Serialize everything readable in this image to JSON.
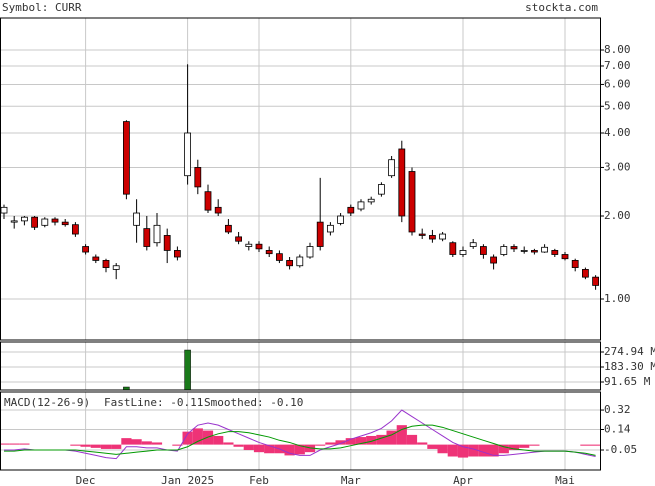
{
  "chart_data": [
    {
      "type": "candlestick",
      "title": "Symbol: CURR",
      "source": "stockta.com",
      "log": true,
      "grid": true,
      "up_color": "#ffffff",
      "down_color": "#cc0000",
      "categories": [
        null,
        null,
        null,
        null,
        null,
        null,
        null,
        null,
        "Dec",
        null,
        null,
        null,
        null,
        null,
        null,
        null,
        null,
        null,
        "Jan 2025",
        null,
        null,
        null,
        null,
        null,
        null,
        "Feb",
        null,
        null,
        null,
        null,
        null,
        null,
        null,
        null,
        "Mar",
        null,
        null,
        null,
        null,
        null,
        null,
        null,
        null,
        null,
        null,
        "Apr",
        null,
        null,
        null,
        null,
        null,
        null,
        null,
        null,
        null,
        "Mai",
        null,
        null,
        null
      ],
      "open": [
        2.05,
        1.9,
        1.92,
        1.98,
        1.85,
        1.95,
        1.9,
        1.86,
        1.55,
        1.42,
        1.38,
        1.28,
        4.4,
        1.85,
        1.8,
        1.6,
        1.7,
        1.5,
        2.8,
        3.0,
        2.45,
        2.15,
        1.85,
        1.68,
        1.55,
        1.58,
        1.5,
        1.46,
        1.38,
        1.32,
        1.42,
        1.9,
        1.75,
        1.88,
        2.15,
        2.12,
        2.25,
        2.4,
        2.8,
        3.5,
        2.9,
        1.72,
        1.7,
        1.65,
        1.6,
        1.45,
        1.55,
        1.55,
        1.42,
        1.45,
        1.55,
        1.5,
        1.5,
        1.48,
        1.5,
        1.45,
        1.38,
        1.28,
        1.2
      ],
      "high": [
        2.2,
        2.0,
        2.0,
        2.0,
        1.98,
        1.98,
        1.95,
        1.9,
        1.58,
        1.45,
        1.4,
        1.35,
        4.45,
        2.3,
        2.0,
        2.05,
        1.8,
        1.55,
        7.1,
        3.2,
        2.6,
        2.3,
        1.95,
        1.75,
        1.62,
        1.62,
        1.55,
        1.5,
        1.42,
        1.45,
        1.6,
        2.75,
        1.9,
        2.05,
        2.2,
        2.3,
        2.35,
        2.65,
        3.3,
        3.75,
        3.0,
        1.8,
        1.78,
        1.75,
        1.62,
        1.55,
        1.65,
        1.58,
        1.45,
        1.58,
        1.58,
        1.55,
        1.52,
        1.58,
        1.52,
        1.48,
        1.4,
        1.3,
        1.22
      ],
      "low": [
        1.95,
        1.8,
        1.85,
        1.78,
        1.82,
        1.85,
        1.83,
        1.68,
        1.45,
        1.35,
        1.25,
        1.18,
        2.3,
        1.6,
        1.5,
        1.55,
        1.35,
        1.38,
        2.6,
        2.4,
        2.05,
        2.0,
        1.72,
        1.58,
        1.5,
        1.48,
        1.42,
        1.35,
        1.28,
        1.3,
        1.4,
        1.5,
        1.7,
        1.85,
        2.0,
        2.08,
        2.2,
        2.35,
        2.75,
        1.9,
        1.7,
        1.65,
        1.6,
        1.62,
        1.42,
        1.42,
        1.52,
        1.4,
        1.28,
        1.43,
        1.48,
        1.46,
        1.45,
        1.47,
        1.42,
        1.38,
        1.26,
        1.18,
        1.08
      ],
      "close": [
        2.15,
        1.92,
        1.98,
        1.82,
        1.95,
        1.9,
        1.86,
        1.72,
        1.48,
        1.38,
        1.3,
        1.32,
        2.4,
        2.05,
        1.55,
        1.85,
        1.5,
        1.42,
        4.0,
        2.55,
        2.1,
        2.05,
        1.75,
        1.62,
        1.58,
        1.52,
        1.46,
        1.38,
        1.32,
        1.42,
        1.55,
        1.55,
        1.85,
        2.0,
        2.05,
        2.25,
        2.3,
        2.6,
        3.2,
        2.0,
        1.75,
        1.7,
        1.65,
        1.72,
        1.45,
        1.5,
        1.6,
        1.45,
        1.35,
        1.55,
        1.52,
        1.5,
        1.48,
        1.54,
        1.45,
        1.4,
        1.3,
        1.2,
        1.12
      ],
      "ylim": [
        0.71,
        10.45
      ],
      "yticks": [
        {
          "value": 1,
          "label": "1.00"
        },
        {
          "value": 2,
          "label": "2.00"
        },
        {
          "value": 3,
          "label": "3.00"
        },
        {
          "value": 4,
          "label": "4.00"
        },
        {
          "value": 5,
          "label": "5.00"
        },
        {
          "value": 6,
          "label": "6.00"
        },
        {
          "value": 7,
          "label": "7.00"
        },
        {
          "value": 8,
          "label": "8.00"
        }
      ]
    },
    {
      "type": "bar",
      "color": "#1a7a1a",
      "values": [
        null,
        null,
        null,
        null,
        null,
        null,
        null,
        null,
        null,
        null,
        null,
        null,
        61,
        null,
        null,
        null,
        null,
        null,
        287,
        null,
        null,
        null,
        null,
        null,
        null,
        null,
        null,
        null,
        null,
        null,
        null,
        null,
        null,
        null,
        null,
        null,
        null,
        null,
        null,
        null,
        null,
        null,
        null,
        null,
        null,
        null,
        null,
        null,
        null,
        null,
        null,
        null,
        null,
        null,
        null,
        null,
        null,
        null,
        null
      ],
      "ylim": [
        42.77,
        336.1
      ],
      "yticks": [
        {
          "value": 91.65,
          "label": "91.65 M"
        },
        {
          "value": 183.3,
          "label": "183.30 M"
        },
        {
          "value": 274.94,
          "label": "274.94 M"
        }
      ]
    },
    {
      "type": "line",
      "title": "MACD(12-26-9)",
      "series": [
        {
          "kind": "bar",
          "color": "#ee3377",
          "values": [
            0.01,
            0.01,
            0.01,
            0,
            0,
            0,
            0,
            -0.01,
            -0.02,
            -0.03,
            -0.04,
            -0.04,
            0.06,
            0.05,
            0.03,
            0.02,
            0,
            -0.01,
            0.12,
            0.15,
            0.13,
            0.08,
            0.02,
            -0.02,
            -0.05,
            -0.07,
            -0.08,
            -0.08,
            -0.1,
            -0.09,
            -0.07,
            -0.01,
            0.02,
            0.04,
            0.06,
            0.07,
            0.08,
            0.09,
            0.13,
            0.18,
            0.09,
            0.02,
            -0.04,
            -0.08,
            -0.11,
            -0.12,
            -0.11,
            -0.11,
            -0.11,
            -0.08,
            -0.05,
            -0.03,
            -0.01,
            0,
            0,
            0,
            0,
            -0.01,
            -0.01
          ]
        },
        {
          "name": "FastLine: -0.11",
          "color": "#9933cc",
          "values": [
            -0.05,
            -0.05,
            -0.04,
            -0.05,
            -0.05,
            -0.05,
            -0.05,
            -0.06,
            -0.08,
            -0.1,
            -0.12,
            -0.13,
            -0.02,
            -0.02,
            -0.03,
            -0.03,
            -0.05,
            -0.06,
            0.1,
            0.18,
            0.2,
            0.18,
            0.14,
            0.1,
            0.06,
            0.02,
            -0.01,
            -0.04,
            -0.08,
            -0.1,
            -0.1,
            -0.05,
            -0.02,
            0.01,
            0.05,
            0.08,
            0.11,
            0.15,
            0.22,
            0.32,
            0.26,
            0.2,
            0.14,
            0.08,
            0.02,
            -0.02,
            -0.04,
            -0.07,
            -0.1,
            -0.1,
            -0.09,
            -0.08,
            -0.07,
            -0.06,
            -0.06,
            -0.06,
            -0.07,
            -0.09,
            -0.11
          ]
        },
        {
          "name": "Smoothed: -0.10",
          "color": "#009900",
          "values": [
            -0.06,
            -0.06,
            -0.05,
            -0.05,
            -0.05,
            -0.05,
            -0.05,
            -0.05,
            -0.06,
            -0.07,
            -0.08,
            -0.09,
            -0.08,
            -0.07,
            -0.06,
            -0.05,
            -0.05,
            -0.05,
            -0.02,
            0.03,
            0.07,
            0.1,
            0.12,
            0.12,
            0.11,
            0.09,
            0.07,
            0.04,
            0.02,
            -0.01,
            -0.03,
            -0.04,
            -0.04,
            -0.03,
            -0.01,
            0.01,
            0.03,
            0.06,
            0.09,
            0.14,
            0.17,
            0.18,
            0.18,
            0.16,
            0.13,
            0.1,
            0.07,
            0.04,
            0.01,
            -0.02,
            -0.04,
            -0.05,
            -0.06,
            -0.06,
            -0.06,
            -0.06,
            -0.07,
            -0.08,
            -0.1
          ]
        }
      ],
      "ylim": [
        -0.235,
        0.487
      ],
      "yticks": [
        -0.05,
        0.14,
        0.32
      ]
    }
  ]
}
